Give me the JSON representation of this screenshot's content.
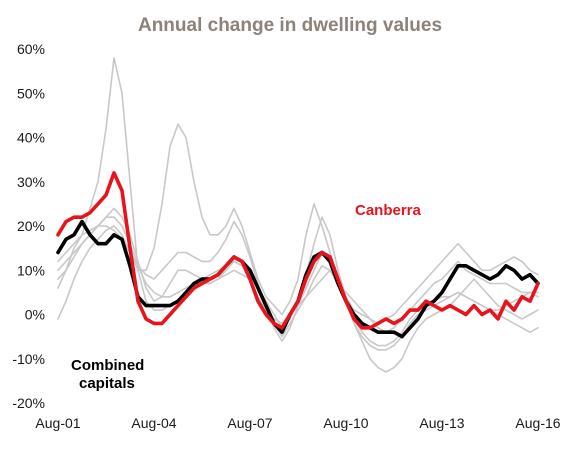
{
  "chart_data": {
    "type": "line",
    "title": "Annual change in dwelling values",
    "xlabel": "",
    "ylabel": "",
    "ylim": [
      -20,
      60
    ],
    "xlim": [
      2001.58,
      2016.58
    ],
    "grid": false,
    "legend": "none",
    "y_ticks": [
      "60%",
      "50%",
      "40%",
      "30%",
      "20%",
      "10%",
      "0%",
      "-10%",
      "-20%"
    ],
    "x_ticks": [
      "Aug-01",
      "Aug-04",
      "Aug-07",
      "Aug-10",
      "Aug-13",
      "Aug-16"
    ],
    "colors": {
      "combined": "#000000",
      "canberra": "#e8141c",
      "other": "#c8c8c8"
    },
    "annotations": {
      "canberra": "Canberra",
      "combined_line1": "Combined",
      "combined_line2": "capitals"
    },
    "x": [
      2001.58,
      2001.83,
      2002.08,
      2002.33,
      2002.58,
      2002.83,
      2003.08,
      2003.33,
      2003.58,
      2003.83,
      2004.08,
      2004.33,
      2004.58,
      2004.83,
      2005.08,
      2005.33,
      2005.58,
      2005.83,
      2006.08,
      2006.33,
      2006.58,
      2006.83,
      2007.08,
      2007.33,
      2007.58,
      2007.83,
      2008.08,
      2008.33,
      2008.58,
      2008.83,
      2009.08,
      2009.33,
      2009.58,
      2009.83,
      2010.08,
      2010.33,
      2010.58,
      2010.83,
      2011.08,
      2011.33,
      2011.58,
      2011.83,
      2012.08,
      2012.33,
      2012.58,
      2012.83,
      2013.08,
      2013.33,
      2013.58,
      2013.83,
      2014.08,
      2014.33,
      2014.58,
      2014.83,
      2015.08,
      2015.33,
      2015.58,
      2015.83,
      2016.08,
      2016.33,
      2016.58
    ],
    "series": [
      {
        "id": "combined",
        "values": [
          14,
          17,
          18,
          21,
          18,
          16,
          16,
          18,
          17,
          11,
          4,
          2,
          2,
          2,
          2,
          3,
          5,
          7,
          8,
          8,
          9,
          11,
          13,
          12,
          10,
          6,
          2,
          -2,
          -4,
          0,
          3,
          9,
          13,
          14,
          12,
          7,
          3,
          0,
          -2,
          -3,
          -4,
          -4,
          -4,
          -5,
          -3,
          -1,
          2,
          3,
          5,
          8,
          11,
          11,
          10,
          9,
          8,
          9,
          11,
          10,
          8,
          9,
          7
        ]
      },
      {
        "id": "canberra",
        "values": [
          18,
          21,
          22,
          22,
          23,
          25,
          27,
          32,
          28,
          15,
          3,
          -1,
          -2,
          -2,
          0,
          2,
          4,
          6,
          7,
          8,
          9,
          11,
          13,
          12,
          8,
          3,
          0,
          -2,
          -3,
          0,
          3,
          8,
          12,
          14,
          13,
          8,
          3,
          -1,
          -3,
          -3,
          -2,
          -1,
          -2,
          -1,
          1,
          1,
          3,
          2,
          1,
          2,
          1,
          0,
          2,
          0,
          1,
          -1,
          3,
          1,
          4,
          3,
          7
        ]
      },
      {
        "id": "city-a",
        "values": [
          6,
          10,
          15,
          18,
          24,
          30,
          42,
          58,
          50,
          30,
          10,
          3,
          1,
          1,
          2,
          3,
          5,
          6,
          7,
          7,
          8,
          9,
          10,
          9,
          8,
          4,
          1,
          -1,
          -2,
          0,
          2,
          4,
          6,
          8,
          10,
          7,
          3,
          -2,
          -6,
          -10,
          -12,
          -13,
          -12,
          -10,
          -6,
          -3,
          -1,
          0,
          1,
          2,
          4,
          6,
          8,
          6,
          4,
          2,
          1,
          0,
          -1,
          0,
          1
        ]
      },
      {
        "id": "city-b",
        "values": [
          -1,
          3,
          8,
          12,
          15,
          17,
          19,
          20,
          18,
          14,
          10,
          10,
          15,
          25,
          38,
          43,
          40,
          30,
          22,
          18,
          18,
          20,
          24,
          20,
          14,
          8,
          4,
          2,
          0,
          3,
          8,
          18,
          25,
          20,
          14,
          8,
          3,
          -2,
          -5,
          -7,
          -8,
          -8,
          -7,
          -5,
          -2,
          0,
          1,
          2,
          3,
          4,
          5,
          4,
          3,
          2,
          1,
          0,
          -1,
          -2,
          -3,
          -4,
          -3
        ]
      },
      {
        "id": "city-c",
        "values": [
          10,
          12,
          14,
          16,
          18,
          20,
          22,
          24,
          22,
          18,
          12,
          6,
          3,
          4,
          7,
          10,
          10,
          9,
          8,
          7,
          8,
          10,
          12,
          11,
          9,
          6,
          2,
          -3,
          -6,
          -3,
          2,
          6,
          10,
          14,
          12,
          8,
          4,
          1,
          0,
          -1,
          -2,
          -1,
          0,
          2,
          4,
          6,
          8,
          10,
          12,
          14,
          16,
          14,
          12,
          10,
          10,
          11,
          12,
          13,
          12,
          10,
          9
        ]
      },
      {
        "id": "city-d",
        "values": [
          12,
          14,
          16,
          18,
          19,
          20,
          20,
          19,
          17,
          14,
          11,
          9,
          8,
          10,
          12,
          14,
          14,
          13,
          12,
          12,
          14,
          17,
          21,
          18,
          13,
          7,
          2,
          -2,
          -5,
          -2,
          1,
          4,
          8,
          11,
          10,
          7,
          5,
          3,
          1,
          -1,
          -3,
          -4,
          -3,
          -1,
          1,
          3,
          5,
          7,
          8,
          10,
          12,
          10,
          9,
          8,
          7,
          7,
          7,
          6,
          5,
          5,
          4
        ]
      },
      {
        "id": "city-e",
        "values": [
          8,
          10,
          13,
          16,
          18,
          20,
          22,
          22,
          20,
          16,
          11,
          7,
          5,
          4,
          4,
          5,
          6,
          7,
          8,
          9,
          10,
          11,
          12,
          11,
          9,
          6,
          3,
          0,
          -3,
          -1,
          3,
          9,
          16,
          22,
          18,
          10,
          4,
          -1,
          -4,
          -6,
          -7,
          -7,
          -6,
          -4,
          -1,
          1,
          2,
          3,
          4,
          4,
          5,
          4,
          3,
          2,
          1,
          1,
          2,
          3,
          4,
          5,
          5
        ]
      }
    ]
  }
}
